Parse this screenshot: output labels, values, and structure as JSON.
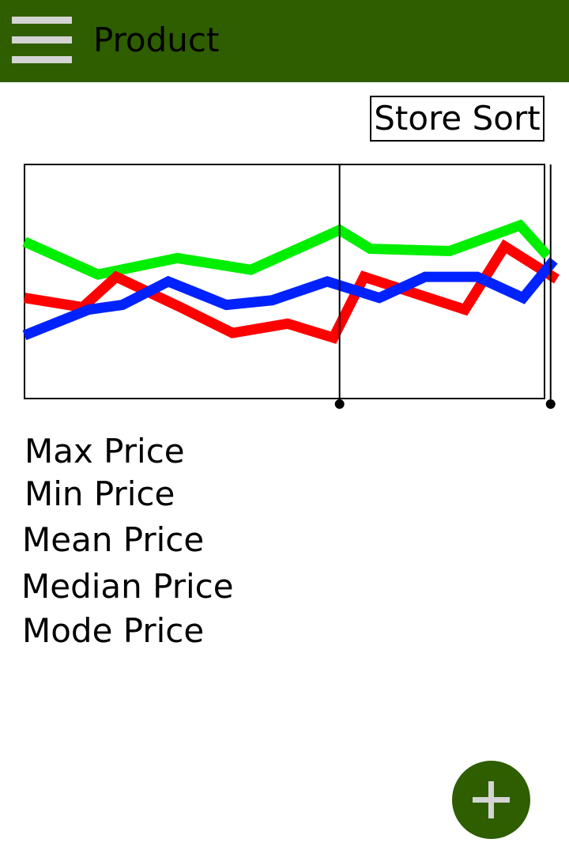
{
  "appbar": {
    "title": "Product",
    "menu_icon": "hamburger-menu-icon",
    "color": "#2e5e00"
  },
  "sort_button": {
    "label": "Store Sort"
  },
  "chart_data": {
    "type": "line",
    "title": "",
    "xlabel": "",
    "ylabel": "",
    "grid": false,
    "legend": "none",
    "x": [
      0,
      1,
      2,
      3,
      4,
      5,
      6,
      7,
      8,
      9,
      10,
      11,
      12,
      13,
      14,
      15,
      16,
      17
    ],
    "ylim": [
      0,
      100
    ],
    "series": [
      {
        "color": "#00ee00",
        "x": [
          0,
          2.4,
          5,
          7.4,
          10.3,
          11.3,
          13.9,
          16.2,
          17.1
        ],
        "values": [
          67,
          53,
          60,
          55,
          72,
          64,
          63,
          74,
          61
        ]
      },
      {
        "color": "#ff0000",
        "x": [
          0,
          1.9,
          3,
          5.1,
          6.8,
          8.6,
          10.1,
          11.1,
          14.4,
          15.7,
          17.4
        ],
        "values": [
          43,
          39,
          52,
          39,
          28,
          32,
          26,
          52,
          38,
          65,
          51
        ]
      },
      {
        "color": "#0022ff",
        "x": [
          0,
          2.1,
          3.2,
          4.7,
          6.6,
          8.1,
          9.9,
          11.6,
          13.1,
          14.8,
          16.3,
          17.3
        ],
        "values": [
          27,
          38,
          40,
          50,
          40,
          42,
          50,
          43,
          52,
          52,
          43,
          59
        ]
      }
    ],
    "markers": [
      10.3,
      17.2
    ]
  },
  "stats": {
    "max": "Max Price",
    "min": "Min Price",
    "mean": "Mean Price",
    "median": "Median Price",
    "mode": "Mode Price"
  },
  "fab": {
    "icon": "plus-icon"
  }
}
